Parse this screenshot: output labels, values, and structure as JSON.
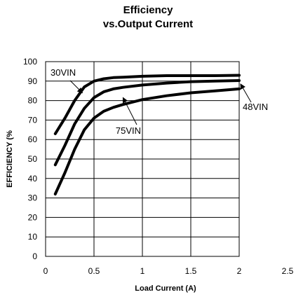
{
  "chart_data": {
    "type": "line",
    "title": "Efficiency",
    "subtitle": "vs.Output Current",
    "xlabel": "Load Current (A)",
    "ylabel": "EFFICIENCY (%",
    "xlim": [
      0,
      2.5
    ],
    "ylim": [
      0,
      100
    ],
    "x_ticks": [
      0,
      0.5,
      1,
      1.5,
      2,
      2.5
    ],
    "x_tick_labels": [
      "0",
      "0.5",
      "1",
      "1.5",
      "2",
      "2.5"
    ],
    "y_ticks": [
      0,
      10,
      20,
      30,
      40,
      50,
      60,
      70,
      80,
      90,
      100
    ],
    "y_tick_labels": [
      "0",
      "10",
      "20",
      "30",
      "40",
      "50",
      "60",
      "70",
      "80",
      "90",
      "100"
    ],
    "grid": true,
    "colors": {
      "line": "#000000",
      "grid": "#000000",
      "background": "#ffffff"
    },
    "series": [
      {
        "name": "30VIN",
        "x": [
          0.1,
          0.2,
          0.3,
          0.4,
          0.5,
          0.6,
          0.7,
          0.8,
          1.0,
          1.25,
          1.5,
          1.75,
          2.0
        ],
        "y": [
          63,
          71,
          80,
          87,
          90,
          91.2,
          91.8,
          92,
          92.5,
          92.8,
          92.8,
          92.8,
          93
        ]
      },
      {
        "name": "48VIN",
        "x": [
          0.1,
          0.2,
          0.3,
          0.4,
          0.5,
          0.6,
          0.7,
          0.8,
          1.0,
          1.25,
          1.5,
          1.75,
          2.0
        ],
        "y": [
          47,
          57,
          68,
          76,
          81.5,
          84.5,
          86,
          86.8,
          88,
          89,
          89.7,
          90,
          90.3
        ]
      },
      {
        "name": "75VIN",
        "x": [
          0.1,
          0.2,
          0.3,
          0.4,
          0.5,
          0.6,
          0.7,
          0.8,
          1.0,
          1.25,
          1.5,
          1.75,
          2.0
        ],
        "y": [
          32,
          43,
          55,
          65,
          71,
          74.5,
          76.5,
          78,
          80.5,
          82.5,
          84,
          85,
          86
        ]
      }
    ],
    "annotations": [
      {
        "text": "30VIN",
        "series": "30VIN"
      },
      {
        "text": "48VIN",
        "series": "48VIN"
      },
      {
        "text": "75VIN",
        "series": "75VIN"
      }
    ]
  }
}
